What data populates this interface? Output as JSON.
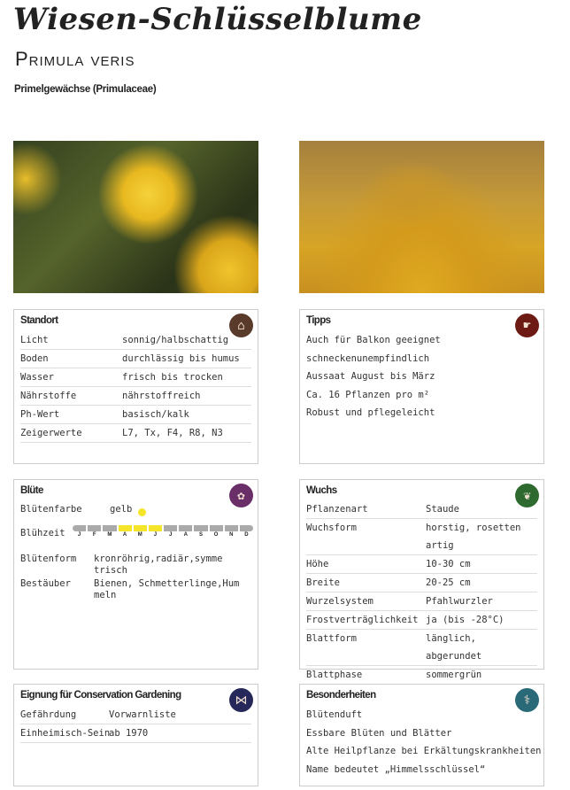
{
  "header": {
    "title": "Wiesen-Schlüsselblume",
    "latin_name": "Primula veris",
    "family": "Primelgewächse (Primulaceae)"
  },
  "standort": {
    "title": "Standort",
    "icon": "house-icon",
    "icon_color": "#5a3a2a",
    "rows": [
      {
        "k": "Licht",
        "v": "sonnig/halbschattig"
      },
      {
        "k": "Boden",
        "v": "durchlässig bis humus"
      },
      {
        "k": "Wasser",
        "v": "frisch bis trocken"
      },
      {
        "k": "Nährstoffe",
        "v": "nährstoffreich"
      },
      {
        "k": "Ph-Wert",
        "v": "basisch/kalk"
      },
      {
        "k": "Zeigerwerte",
        "v": "L7, Tx, F4, R8, N3"
      }
    ]
  },
  "tipps": {
    "title": "Tipps",
    "icon": "pointing-hand-icon",
    "icon_color": "#6e1a14",
    "items": [
      "Auch für Balkon geeignet",
      "schneckenunempfindlich",
      "Aussaat August bis März",
      "Ca. 16 Pflanzen pro m²",
      "Robust und pflegeleicht"
    ]
  },
  "bluete": {
    "title": "Blüte",
    "icon": "flower-icon",
    "icon_color": "#6a2e68",
    "farbe_label": "Blütenfarbe",
    "farbe": "gelb",
    "farbe_color": "#f5e52a",
    "zeit_label": "Blühzeit",
    "months": [
      "J",
      "F",
      "M",
      "A",
      "M",
      "J",
      "J",
      "A",
      "S",
      "O",
      "N",
      "D"
    ],
    "bloom_months": [
      4,
      5,
      6
    ],
    "form_label": "Blütenform",
    "form": "kronröhrig,radiär,symmetrisch",
    "bestaeuber_label": "Bestäuber",
    "bestaeuber": "Bienen, Schmetterlinge,Hummeln"
  },
  "wuchs": {
    "title": "Wuchs",
    "icon": "leaf-icon",
    "icon_color": "#2e6a30",
    "rows": [
      {
        "k": "Pflanzenart",
        "v": "Staude"
      },
      {
        "k": "Wuchsform",
        "v": "horstig, rosetten artig"
      },
      {
        "k": "Höhe",
        "v": "10-30 cm"
      },
      {
        "k": "Breite",
        "v": "20-25 cm"
      },
      {
        "k": "Wurzelsystem",
        "v": "Pfahlwurzler"
      },
      {
        "k": "Frostverträglichkeit",
        "v": "ja (bis -28°C)"
      },
      {
        "k": "Blattform",
        "v": "länglich, abgerundet"
      },
      {
        "k": "Blattphase",
        "v": "sommergrün"
      }
    ]
  },
  "eignung": {
    "title": "Eignung für Conservation Gardening",
    "icon": "butterfly-icon",
    "icon_color": "#26285a",
    "rows": [
      {
        "k": "Gefährdung",
        "v": "Vorwarnliste"
      },
      {
        "k": "Einheimisch-Sein",
        "v": "ab 1970"
      }
    ]
  },
  "besonderheiten": {
    "title": "Besonderheiten",
    "icon": "caduceus-icon",
    "icon_color": "#2a6a78",
    "items": [
      "Blütenduft",
      "Essbare Blüten und Blätter",
      "Alte Heilpflanze bei Erkältungskrankheiten",
      "Name bedeutet „Himmelsschlüssel“"
    ]
  }
}
